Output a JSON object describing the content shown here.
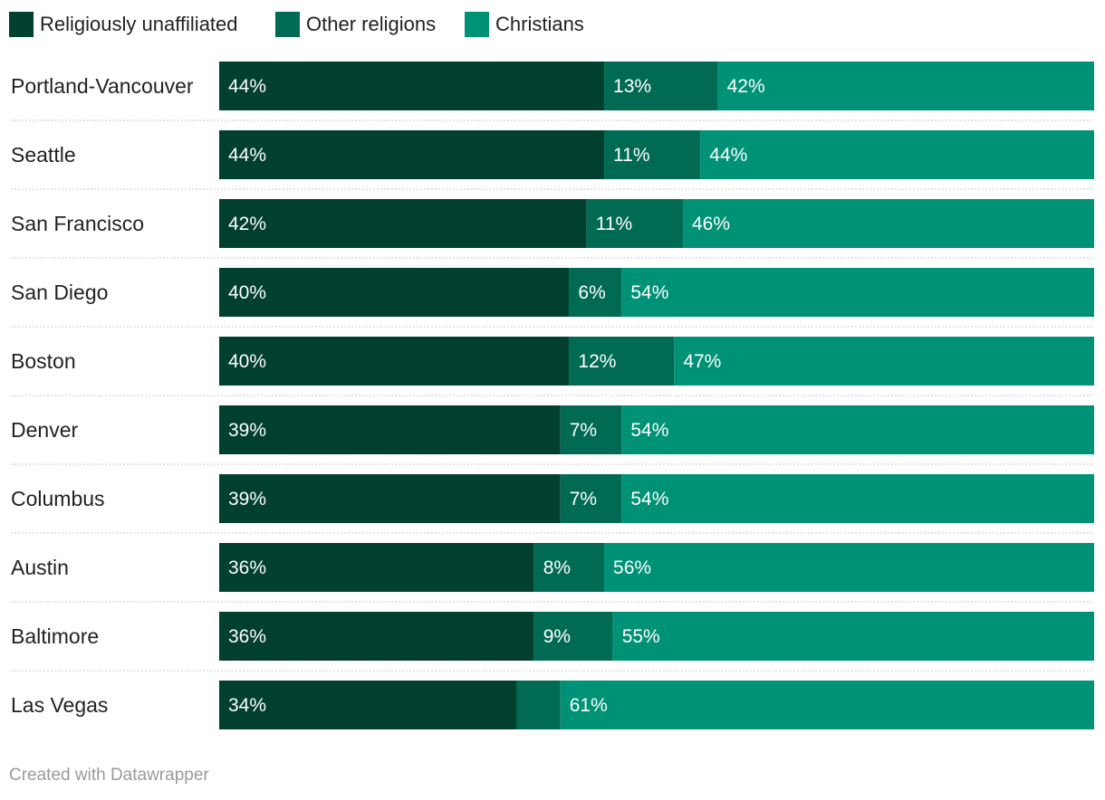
{
  "chart_data": {
    "type": "bar",
    "orientation": "horizontal",
    "stacked": true,
    "legend_position": "top-left",
    "grid": false,
    "xlim": [
      0,
      100
    ],
    "categories": [
      "Portland-Vancouver",
      "Seattle",
      "San Francisco",
      "San Diego",
      "Boston",
      "Denver",
      "Columbus",
      "Austin",
      "Baltimore",
      "Las Vegas"
    ],
    "series": [
      {
        "name": "Religiously unaffiliated",
        "color": "#013f2e",
        "values": [
          44,
          44,
          42,
          40,
          40,
          39,
          39,
          36,
          36,
          34
        ],
        "labels": [
          "44%",
          "44%",
          "42%",
          "40%",
          "40%",
          "39%",
          "39%",
          "36%",
          "36%",
          "34%"
        ]
      },
      {
        "name": "Other religions",
        "color": "#006b52",
        "values": [
          13,
          11,
          11,
          6,
          12,
          7,
          7,
          8,
          9,
          5
        ],
        "labels": [
          "13%",
          "11%",
          "11%",
          "6%",
          "12%",
          "7%",
          "7%",
          "8%",
          "9%",
          ""
        ]
      },
      {
        "name": "Christians",
        "color": "#009276",
        "values": [
          42,
          44,
          46,
          54,
          47,
          54,
          54,
          56,
          55,
          61
        ],
        "labels": [
          "42%",
          "44%",
          "46%",
          "54%",
          "47%",
          "54%",
          "54%",
          "56%",
          "55%",
          "61%"
        ]
      }
    ]
  },
  "footer": {
    "credit": "Created with Datawrapper"
  }
}
